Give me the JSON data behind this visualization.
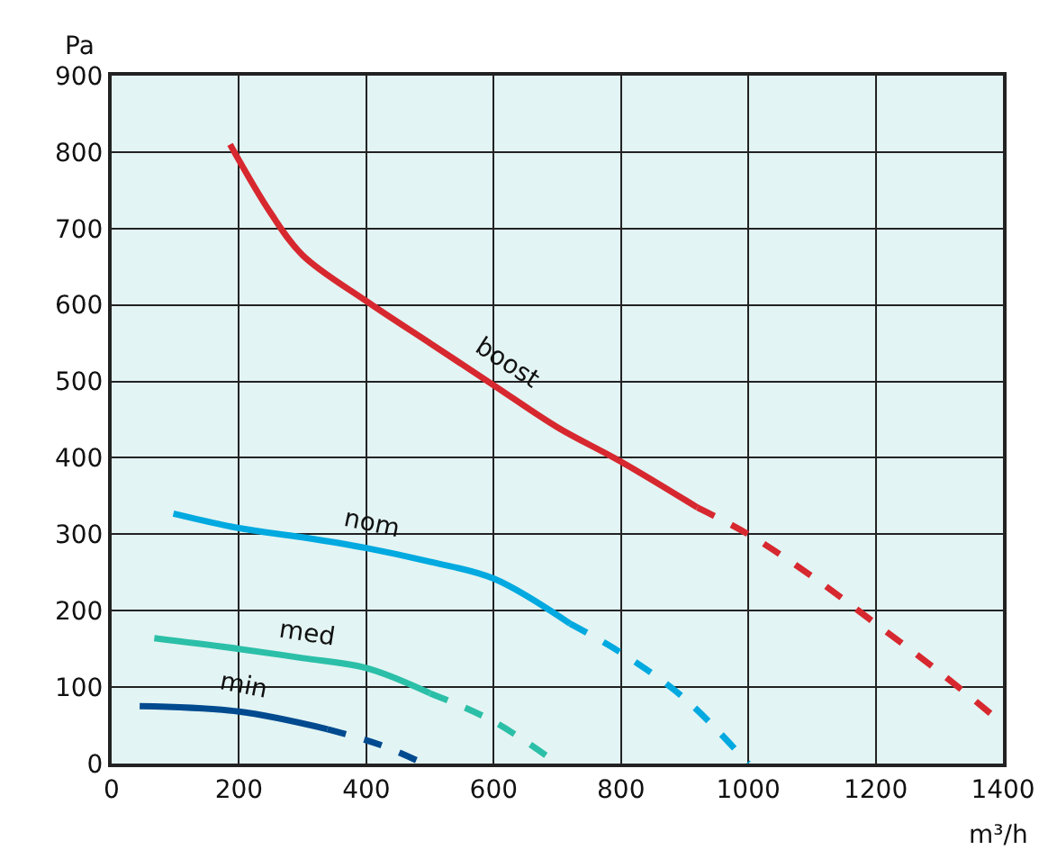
{
  "chart_data": {
    "type": "line",
    "xlabel": "m³/h",
    "ylabel": "Pa",
    "xlim": [
      0,
      1400
    ],
    "xticks": [
      0,
      200,
      400,
      600,
      800,
      1000,
      1200,
      1400
    ],
    "ylim": [
      0,
      900
    ],
    "yticks": [
      0,
      100,
      200,
      300,
      400,
      500,
      600,
      700,
      800,
      900
    ],
    "grid": true,
    "legend": false,
    "marker": "none",
    "series": [
      {
        "name": "boost",
        "color": "#d7282f",
        "line_style": "solid",
        "x": [
          186,
          250,
          300,
          400,
          500,
          600,
          700,
          800,
          920
        ],
        "values": [
          810,
          720,
          665,
          605,
          550,
          495,
          440,
          395,
          335
        ]
      },
      {
        "color": "#d7282f",
        "line_style": "dashed",
        "x": [
          920,
          1000,
          1100,
          1200,
          1300,
          1400
        ],
        "values": [
          335,
          300,
          245,
          183,
          120,
          52
        ]
      },
      {
        "name": "nom",
        "color": "#00a9e0",
        "line_style": "solid",
        "x": [
          97,
          200,
          300,
          400,
          500,
          600,
          720
        ],
        "values": [
          327,
          308,
          296,
          282,
          264,
          242,
          183
        ]
      },
      {
        "color": "#00a9e0",
        "line_style": "dashed",
        "x": [
          720,
          800,
          900,
          1000
        ],
        "values": [
          183,
          145,
          85,
          0
        ]
      },
      {
        "name": "med",
        "color": "#2bbfa8",
        "line_style": "solid",
        "x": [
          67,
          200,
          300,
          400,
          500
        ],
        "values": [
          164,
          150,
          138,
          125,
          92
        ]
      },
      {
        "color": "#2bbfa8",
        "line_style": "dashed",
        "x": [
          500,
          600,
          700
        ],
        "values": [
          92,
          55,
          0
        ]
      },
      {
        "name": "min",
        "color": "#004a8f",
        "line_style": "solid",
        "x": [
          44,
          200,
          339
        ],
        "values": [
          75,
          68,
          45
        ]
      },
      {
        "color": "#004a8f",
        "line_style": "dashed",
        "x": [
          339,
          420,
          490
        ],
        "values": [
          45,
          25,
          0
        ]
      }
    ]
  }
}
